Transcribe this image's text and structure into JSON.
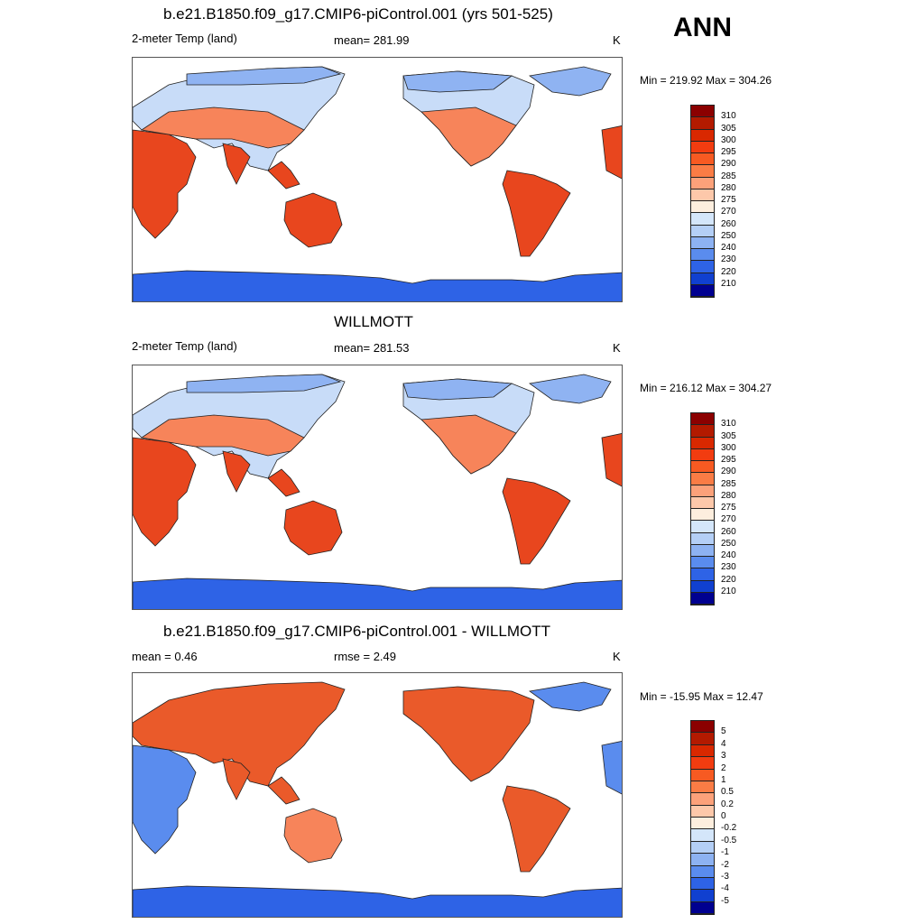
{
  "season": "ANN",
  "panels": [
    {
      "title": "b.e21.B1850.f09_g17.CMIP6-piControl.001 (yrs 501-525)",
      "left_label": "2-meter Temp (land)",
      "center_label": "mean= 281.99",
      "units": "K",
      "minmax": "Min = 219.92 Max = 304.26",
      "colorbar": {
        "labels": [
          "310",
          "305",
          "300",
          "295",
          "290",
          "285",
          "280",
          "275",
          "270",
          "260",
          "250",
          "240",
          "230",
          "220",
          "210"
        ],
        "colors": [
          "#8b0000",
          "#b31a00",
          "#d92800",
          "#f23c10",
          "#f75a22",
          "#fa7c45",
          "#fca17a",
          "#fdc8aa",
          "#fdeede",
          "#d4e6fa",
          "#b4cff6",
          "#8db2f2",
          "#5a8cee",
          "#2e63e6",
          "#1040d0",
          "#000090"
        ]
      }
    },
    {
      "title": "WILLMOTT",
      "left_label": "2-meter Temp (land)",
      "center_label": "mean= 281.53",
      "units": "K",
      "minmax": "Min = 216.12 Max = 304.27",
      "colorbar": {
        "labels": [
          "310",
          "305",
          "300",
          "295",
          "290",
          "285",
          "280",
          "275",
          "270",
          "260",
          "250",
          "240",
          "230",
          "220",
          "210"
        ],
        "colors": [
          "#8b0000",
          "#b31a00",
          "#d92800",
          "#f23c10",
          "#f75a22",
          "#fa7c45",
          "#fca17a",
          "#fdc8aa",
          "#fdeede",
          "#d4e6fa",
          "#b4cff6",
          "#8db2f2",
          "#5a8cee",
          "#2e63e6",
          "#1040d0",
          "#000090"
        ]
      }
    },
    {
      "title": "b.e21.B1850.f09_g17.CMIP6-piControl.001 - WILLMOTT",
      "left_label": "mean =   0.46",
      "center_label": "rmse =   2.49",
      "units": "K",
      "minmax": "Min = -15.95 Max =  12.47",
      "colorbar": {
        "labels": [
          "5",
          "4",
          "3",
          "2",
          "1",
          "0.5",
          "0.2",
          "0",
          "-0.2",
          "-0.5",
          "-1",
          "-2",
          "-3",
          "-4",
          "-5"
        ],
        "colors": [
          "#8b0000",
          "#b31a00",
          "#d92800",
          "#f23c10",
          "#f75a22",
          "#fa7c45",
          "#fca17a",
          "#fdc8aa",
          "#fdeede",
          "#d4e6fa",
          "#b4cff6",
          "#8db2f2",
          "#5a8cee",
          "#2e63e6",
          "#1040d0",
          "#000090"
        ]
      }
    }
  ],
  "land_colors": {
    "hot": "#e8461e",
    "warm": "#f7845a",
    "mild": "#fcc3a6",
    "cool": "#c8dcf8",
    "cold": "#8fb3f2",
    "frigid": "#2e63e6",
    "diff_warm": "#ea5a2a",
    "diff_cold": "#5a8cee"
  }
}
